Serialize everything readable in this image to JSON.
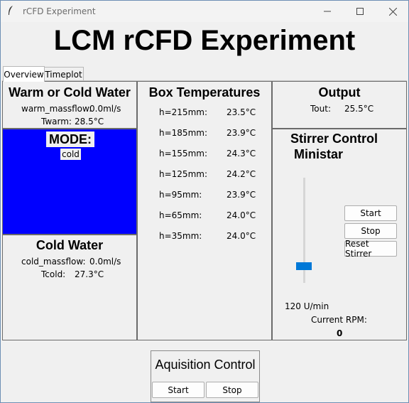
{
  "window": {
    "title": "rCFD Experiment",
    "icon": "feather-icon"
  },
  "main_title": "LCM rCFD Experiment",
  "tabs": [
    {
      "label": "Overview"
    },
    {
      "label": "Timeplot"
    }
  ],
  "warm": {
    "heading": "Warm or Cold Water",
    "massflow_label": "warm_massflow:",
    "massflow_value": "0.0ml/s",
    "temp_label": "Twarm:",
    "temp_value": "28.5°C"
  },
  "mode": {
    "heading": "MODE:",
    "value": "cold",
    "color": "#0000ff"
  },
  "cold": {
    "heading": "Cold Water",
    "massflow_label": "cold_massflow:",
    "massflow_value": "0.0ml/s",
    "temp_label": "Tcold:",
    "temp_value": "27.3°C"
  },
  "box": {
    "heading": "Box Temperatures",
    "rows": [
      {
        "label": "h=215mm:",
        "value": "23.5°C"
      },
      {
        "label": "h=185mm:",
        "value": "23.9°C"
      },
      {
        "label": "h=155mm:",
        "value": "24.3°C"
      },
      {
        "label": "h=125mm:",
        "value": "24.2°C"
      },
      {
        "label": "h=95mm:",
        "value": "23.9°C"
      },
      {
        "label": "h=65mm:",
        "value": "24.0°C"
      },
      {
        "label": "h=35mm:",
        "value": "24.0°C"
      }
    ]
  },
  "output": {
    "heading": "Output",
    "label": "Tout:",
    "value": "25.5°C"
  },
  "stirrer": {
    "heading_line1": "Stirrer Control",
    "heading_line2": "Ministar",
    "start_label": "Start",
    "stop_label": "Stop",
    "reset_label": "Reset Stirrer",
    "slider_value": "120 U/min",
    "slider_level": 0.1,
    "rpm_label": "Current RPM:",
    "rpm_value": "0",
    "accent": "#0078d7"
  },
  "acquisition": {
    "heading": "Aquisition Control",
    "start_label": "Start",
    "stop_label": "Stop"
  }
}
